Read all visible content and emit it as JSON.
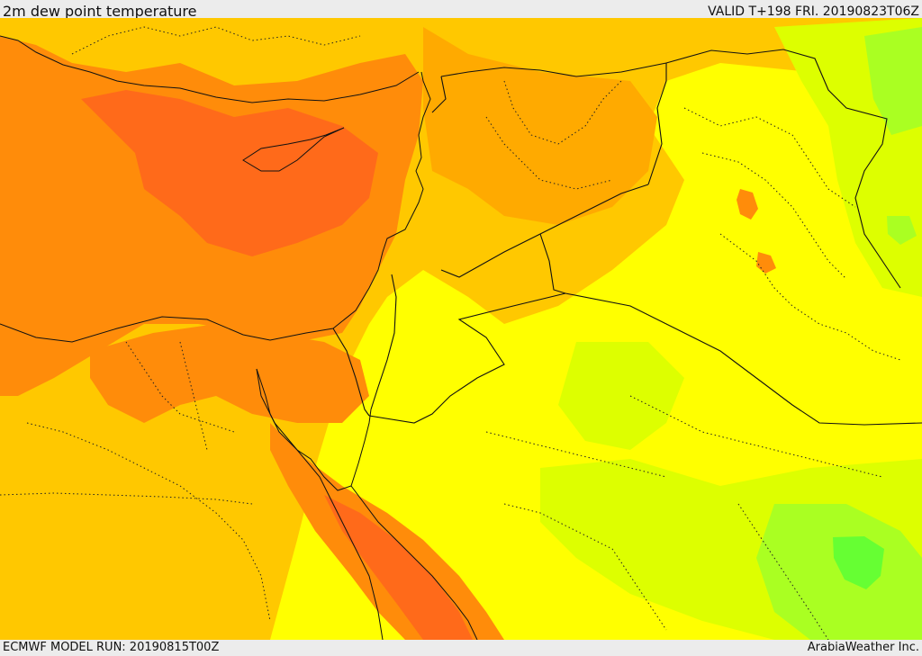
{
  "header": {
    "title": "2m dew point temperature",
    "valid": "VALID T+198 FRI. 20190823T06Z"
  },
  "footer": {
    "model_run": "ECMWF MODEL RUN: 20190815T00Z",
    "credit": "ArabiaWeather Inc."
  },
  "map": {
    "field": "2m dew point temperature",
    "palette": {
      "dark_orange": "#ff6a1a",
      "orange": "#ff8c0a",
      "light_orange": "#ffaa00",
      "amber": "#ffc800",
      "yellow": "#ffff00",
      "yellow_green": "#ddff00",
      "green": "#aaff22",
      "bright_green": "#66ff33",
      "border_line": "#111111"
    }
  }
}
